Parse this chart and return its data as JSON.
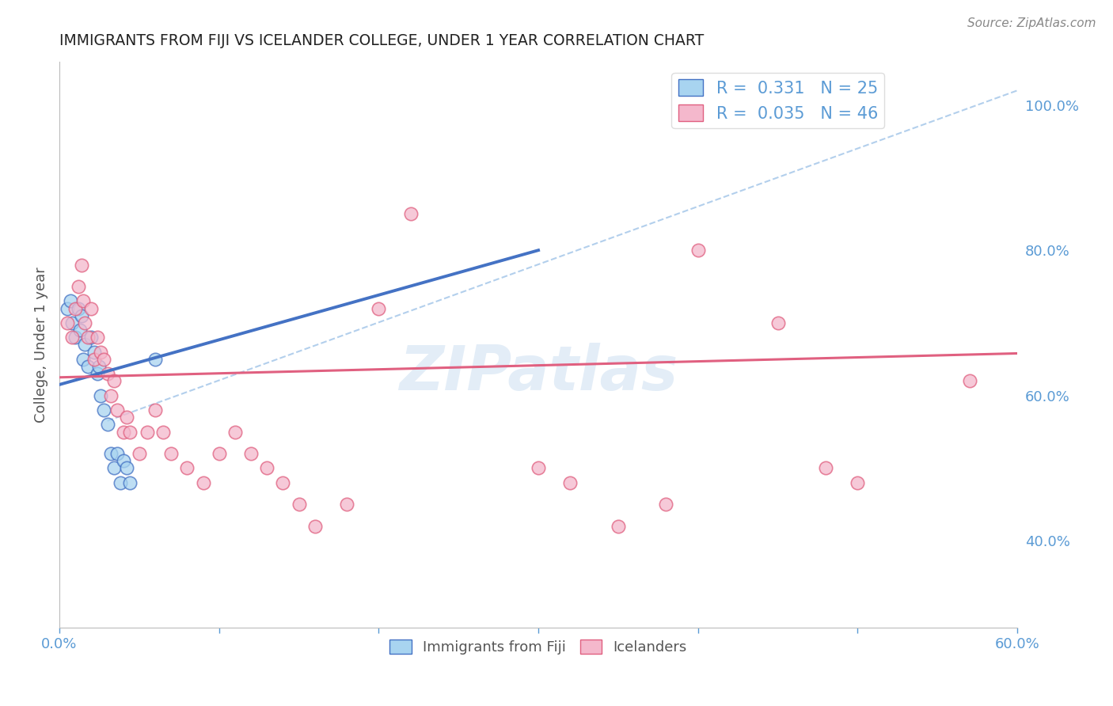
{
  "title": "IMMIGRANTS FROM FIJI VS ICELANDER COLLEGE, UNDER 1 YEAR CORRELATION CHART",
  "source": "Source: ZipAtlas.com",
  "ylabel": "College, Under 1 year",
  "xmin": 0.0,
  "xmax": 0.6,
  "ymin": 0.28,
  "ymax": 1.06,
  "x_ticks": [
    0.0,
    0.1,
    0.2,
    0.3,
    0.4,
    0.5,
    0.6
  ],
  "x_tick_labels": [
    "0.0%",
    "",
    "",
    "",
    "",
    "",
    "60.0%"
  ],
  "y_ticks_right": [
    0.4,
    0.6,
    0.8,
    1.0
  ],
  "y_tick_labels_right": [
    "40.0%",
    "60.0%",
    "80.0%",
    "100.0%"
  ],
  "fiji_color": "#a8d4f0",
  "fiji_edge_color": "#4472c4",
  "iceland_color": "#f4b8cc",
  "iceland_edge_color": "#e06080",
  "fiji_R": 0.331,
  "fiji_N": 25,
  "iceland_R": 0.035,
  "iceland_N": 46,
  "fiji_scatter_x": [
    0.005,
    0.007,
    0.008,
    0.01,
    0.012,
    0.013,
    0.014,
    0.015,
    0.016,
    0.018,
    0.02,
    0.022,
    0.024,
    0.025,
    0.026,
    0.028,
    0.03,
    0.032,
    0.034,
    0.036,
    0.038,
    0.04,
    0.042,
    0.044,
    0.06
  ],
  "fiji_scatter_y": [
    0.72,
    0.73,
    0.7,
    0.68,
    0.72,
    0.69,
    0.71,
    0.65,
    0.67,
    0.64,
    0.68,
    0.66,
    0.63,
    0.64,
    0.6,
    0.58,
    0.56,
    0.52,
    0.5,
    0.52,
    0.48,
    0.51,
    0.5,
    0.48,
    0.65
  ],
  "iceland_scatter_x": [
    0.005,
    0.008,
    0.01,
    0.012,
    0.014,
    0.015,
    0.016,
    0.018,
    0.02,
    0.022,
    0.024,
    0.026,
    0.028,
    0.03,
    0.032,
    0.034,
    0.036,
    0.04,
    0.042,
    0.044,
    0.05,
    0.055,
    0.06,
    0.065,
    0.07,
    0.08,
    0.09,
    0.1,
    0.11,
    0.12,
    0.13,
    0.14,
    0.15,
    0.16,
    0.18,
    0.2,
    0.22,
    0.3,
    0.32,
    0.35,
    0.38,
    0.4,
    0.45,
    0.48,
    0.5,
    0.57
  ],
  "iceland_scatter_y": [
    0.7,
    0.68,
    0.72,
    0.75,
    0.78,
    0.73,
    0.7,
    0.68,
    0.72,
    0.65,
    0.68,
    0.66,
    0.65,
    0.63,
    0.6,
    0.62,
    0.58,
    0.55,
    0.57,
    0.55,
    0.52,
    0.55,
    0.58,
    0.55,
    0.52,
    0.5,
    0.48,
    0.52,
    0.55,
    0.52,
    0.5,
    0.48,
    0.45,
    0.42,
    0.45,
    0.72,
    0.85,
    0.5,
    0.48,
    0.42,
    0.45,
    0.8,
    0.7,
    0.5,
    0.48,
    0.62
  ],
  "watermark": "ZIPatlas",
  "background_color": "#ffffff",
  "grid_color": "#d8d8d8",
  "title_color": "#222222",
  "axis_label_color": "#555555",
  "right_tick_color": "#5b9bd5",
  "bottom_tick_color": "#5b9bd5",
  "legend_bottom_labels": [
    "Immigrants from Fiji",
    "Icelanders"
  ]
}
